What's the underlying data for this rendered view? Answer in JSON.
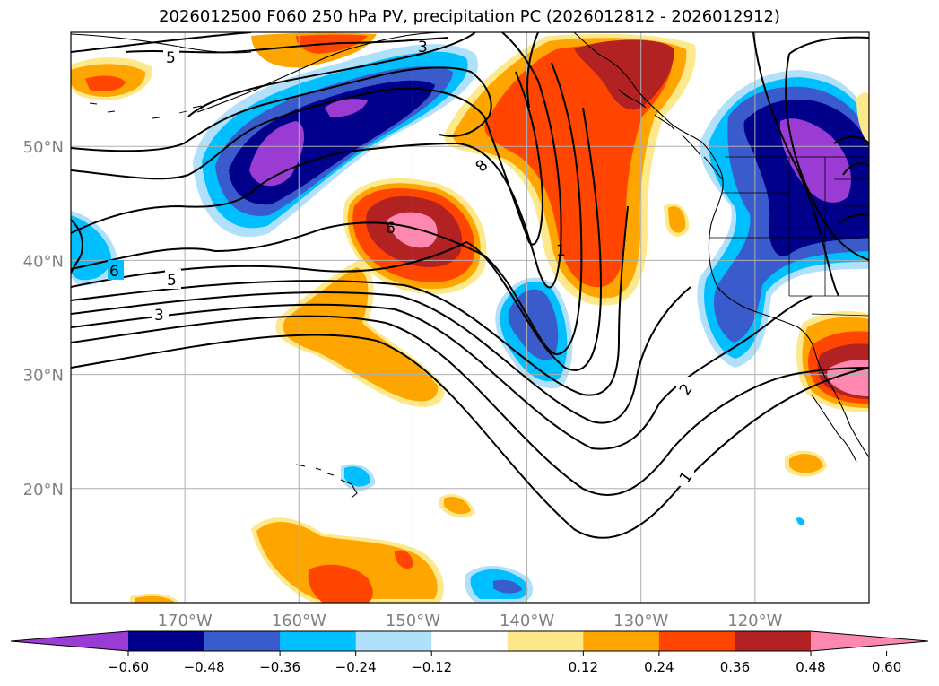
{
  "title": "2026012500 F060 250 hPa PV, precipitation PC (2026012812 - 2026012912)",
  "map": {
    "projection": "PlateCarree",
    "lon_range": [
      -180,
      -110
    ],
    "lat_range": [
      10,
      60
    ],
    "gridlines": true,
    "lat_ticks": [
      {
        "lat": 50,
        "label": "50°N"
      },
      {
        "lat": 40,
        "label": "40°N"
      },
      {
        "lat": 30,
        "label": "30°N"
      },
      {
        "lat": 20,
        "label": "20°N"
      }
    ],
    "lon_ticks": [
      {
        "lon": -170,
        "label": "170°W"
      },
      {
        "lon": -160,
        "label": "160°W"
      },
      {
        "lon": -150,
        "label": "150°W"
      },
      {
        "lon": -140,
        "label": "140°W"
      },
      {
        "lon": -130,
        "label": "130°W"
      },
      {
        "lon": -120,
        "label": "120°W"
      }
    ],
    "contour_labels": [
      "5",
      "3",
      "6",
      "5",
      "3",
      "6",
      "8",
      "1",
      "2",
      "1"
    ]
  },
  "colorbar": {
    "levels": [
      -0.72,
      -0.6,
      -0.48,
      -0.36,
      -0.24,
      -0.12,
      0.12,
      0.24,
      0.36,
      0.48,
      0.6,
      0.72
    ],
    "tick_labels": [
      "−0.60",
      "−0.48",
      "−0.36",
      "−0.24",
      "−0.12",
      "0.12",
      "0.24",
      "0.36",
      "0.48",
      "0.60"
    ],
    "colors": [
      "#9a3bd3",
      "#00008b",
      "#3a5bcc",
      "#00bfff",
      "#b0e0fa",
      "#ffffff",
      "#fde98c",
      "#ffa500",
      "#ff4500",
      "#b22222",
      "#ff88b0"
    ],
    "extend": "both"
  },
  "colors": {
    "grid": "#b0b0b0",
    "coast": "#000000",
    "contour": "#000000"
  }
}
